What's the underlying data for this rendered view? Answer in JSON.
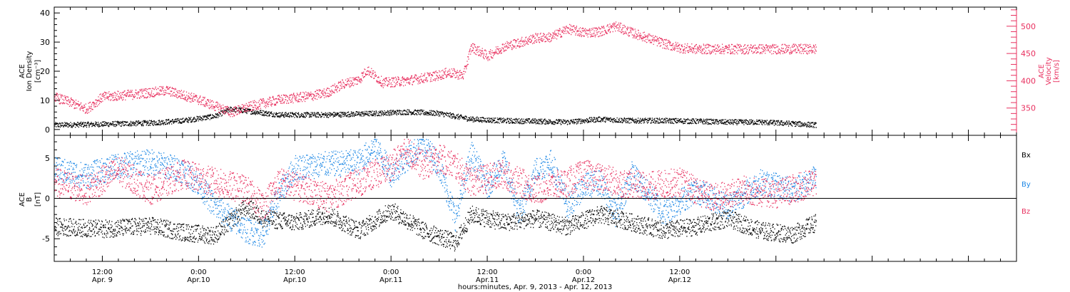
{
  "chart_data": {
    "type": "scatter",
    "x_axis": {
      "title": "hours:minutes, Apr.  9, 2013 - Apr. 12, 2013",
      "range_hours": [
        6,
        126
      ],
      "major_ticks": [
        {
          "hour": 12,
          "time": "12:00",
          "day": "Apr. 9"
        },
        {
          "hour": 24,
          "time": "0:00",
          "day": "Apr.10"
        },
        {
          "hour": 36,
          "time": "12:00",
          "day": "Apr.10"
        },
        {
          "hour": 48,
          "time": "0:00",
          "day": "Apr.11"
        },
        {
          "hour": 60,
          "time": "12:00",
          "day": "Apr.11"
        },
        {
          "hour": 72,
          "time": "0:00",
          "day": "Apr.12"
        },
        {
          "hour": 84,
          "time": "12:00",
          "day": "Apr.12"
        }
      ],
      "minor_tick_step_hours": 2,
      "data_end_hour": 101
    },
    "colors": {
      "black": "#000000",
      "red": "#e8305f",
      "blue": "#1e88e5"
    },
    "panels": [
      {
        "id": "top",
        "ylabel": [
          "ACE",
          "Ion Density",
          "[cm⁻³]"
        ],
        "ylim": [
          -2,
          42
        ],
        "yticks": [
          0,
          10,
          20,
          30,
          40
        ],
        "y2label": [
          "ACE",
          "Velocity",
          "[km/s]"
        ],
        "y2lim": [
          300,
          535
        ],
        "y2ticks": [
          350,
          400,
          450,
          500
        ],
        "series": [
          {
            "id": "density",
            "axis": "left",
            "color": "#000000",
            "keyframes": [
              [
                6,
                1.5
              ],
              [
                12,
                1.8
              ],
              [
                18,
                2.2
              ],
              [
                22,
                3
              ],
              [
                26,
                4.5
              ],
              [
                28,
                7
              ],
              [
                31,
                6
              ],
              [
                34,
                5
              ],
              [
                40,
                5
              ],
              [
                46,
                5.5
              ],
              [
                50,
                6
              ],
              [
                54,
                5.5
              ],
              [
                58,
                3.5
              ],
              [
                62,
                3
              ],
              [
                66,
                2.8
              ],
              [
                70,
                2.5
              ],
              [
                74,
                3.5
              ],
              [
                78,
                3
              ],
              [
                82,
                3
              ],
              [
                86,
                2.8
              ],
              [
                90,
                2.5
              ],
              [
                94,
                2.5
              ],
              [
                98,
                2
              ],
              [
                101,
                1.5
              ]
            ]
          },
          {
            "id": "velocity",
            "axis": "right",
            "color": "#e8305f",
            "keyframes": [
              [
                6,
                370
              ],
              [
                8,
                360
              ],
              [
                10,
                348
              ],
              [
                12,
                370
              ],
              [
                16,
                375
              ],
              [
                20,
                382
              ],
              [
                24,
                365
              ],
              [
                28,
                342
              ],
              [
                31,
                355
              ],
              [
                34,
                365
              ],
              [
                38,
                372
              ],
              [
                40,
                378
              ],
              [
                42,
                394
              ],
              [
                44,
                402
              ],
              [
                45,
                420
              ],
              [
                47,
                396
              ],
              [
                50,
                400
              ],
              [
                54,
                410
              ],
              [
                55,
                415
              ],
              [
                57,
                410
              ],
              [
                58,
                462
              ],
              [
                60,
                445
              ],
              [
                62,
                462
              ],
              [
                64,
                470
              ],
              [
                66,
                478
              ],
              [
                68,
                480
              ],
              [
                70,
                495
              ],
              [
                72,
                488
              ],
              [
                74,
                490
              ],
              [
                76,
                500
              ],
              [
                78,
                488
              ],
              [
                80,
                478
              ],
              [
                82,
                468
              ],
              [
                84,
                460
              ],
              [
                86,
                458
              ]
            ]
          }
        ]
      },
      {
        "id": "bottom",
        "ylabel": [
          "ACE",
          "B",
          "[nT]"
        ],
        "ylim": [
          -7.8,
          7.8
        ],
        "yticks": [
          -5,
          0,
          5
        ],
        "zero_line": true,
        "legend": [
          {
            "label": "Bx",
            "color": "#000000"
          },
          {
            "label": "By",
            "color": "#1e88e5"
          },
          {
            "label": "Bz",
            "color": "#e8305f"
          }
        ],
        "series": [
          {
            "id": "Bx",
            "color": "#000000",
            "keyframes": [
              [
                6,
                -3.5
              ],
              [
                12,
                -3.8
              ],
              [
                18,
                -3.4
              ],
              [
                22,
                -4.2
              ],
              [
                26,
                -4.6
              ],
              [
                30,
                -1
              ],
              [
                32,
                -2.5
              ],
              [
                36,
                -3
              ],
              [
                40,
                -2
              ],
              [
                44,
                -4
              ],
              [
                48,
                -1.5
              ],
              [
                52,
                -4
              ],
              [
                56,
                -5.5
              ],
              [
                58,
                -2
              ],
              [
                62,
                -3
              ],
              [
                66,
                -2.5
              ],
              [
                70,
                -3.5
              ],
              [
                74,
                -2
              ],
              [
                78,
                -3
              ],
              [
                82,
                -4
              ],
              [
                86,
                -3.5
              ],
              [
                90,
                -2.5
              ],
              [
                94,
                -4
              ],
              [
                98,
                -4.5
              ],
              [
                101,
                -3
              ]
            ],
            "jitter": 1.1
          },
          {
            "id": "By",
            "color": "#1e88e5",
            "keyframes": [
              [
                6,
                3.5
              ],
              [
                10,
                2.8
              ],
              [
                14,
                4
              ],
              [
                18,
                4.5
              ],
              [
                22,
                3.5
              ],
              [
                24,
                1.8
              ],
              [
                26,
                -1
              ],
              [
                30,
                -4
              ],
              [
                32,
                -4.5
              ],
              [
                34,
                0.5
              ],
              [
                36,
                3.8
              ],
              [
                38,
                4
              ],
              [
                40,
                4.2
              ],
              [
                44,
                4.5
              ],
              [
                46,
                6.5
              ],
              [
                48,
                3
              ],
              [
                50,
                5
              ],
              [
                52,
                6.8
              ],
              [
                54,
                4
              ],
              [
                56,
                -2.5
              ],
              [
                58,
                5.5
              ],
              [
                60,
                1.5
              ],
              [
                62,
                4.5
              ],
              [
                64,
                -2
              ],
              [
                66,
                3.5
              ],
              [
                68,
                4.5
              ],
              [
                70,
                -1
              ],
              [
                72,
                1.5
              ],
              [
                74,
                2
              ],
              [
                76,
                -2
              ],
              [
                78,
                3
              ],
              [
                82,
                -1.8
              ],
              [
                86,
                1
              ],
              [
                90,
                -1
              ],
              [
                94,
                2
              ],
              [
                98,
                1
              ],
              [
                101,
                2.5
              ]
            ],
            "jitter": 1.6
          },
          {
            "id": "Bz",
            "color": "#e8305f",
            "keyframes": [
              [
                6,
                2
              ],
              [
                10,
                1
              ],
              [
                14,
                3.5
              ],
              [
                18,
                1
              ],
              [
                22,
                3
              ],
              [
                26,
                2
              ],
              [
                30,
                1
              ],
              [
                32,
                -1
              ],
              [
                34,
                2
              ],
              [
                36,
                1.5
              ],
              [
                38,
                1
              ],
              [
                40,
                0
              ],
              [
                44,
                2
              ],
              [
                48,
                4
              ],
              [
                50,
                6
              ],
              [
                52,
                4
              ],
              [
                54,
                5
              ],
              [
                56,
                4
              ],
              [
                58,
                2
              ],
              [
                62,
                3
              ],
              [
                66,
                1
              ],
              [
                70,
                2
              ],
              [
                72,
                3
              ],
              [
                76,
                2
              ],
              [
                80,
                1.5
              ],
              [
                84,
                2
              ],
              [
                88,
                0
              ],
              [
                92,
                1
              ],
              [
                96,
                0.5
              ],
              [
                101,
                2
              ]
            ],
            "jitter": 1.8
          }
        ]
      }
    ]
  }
}
